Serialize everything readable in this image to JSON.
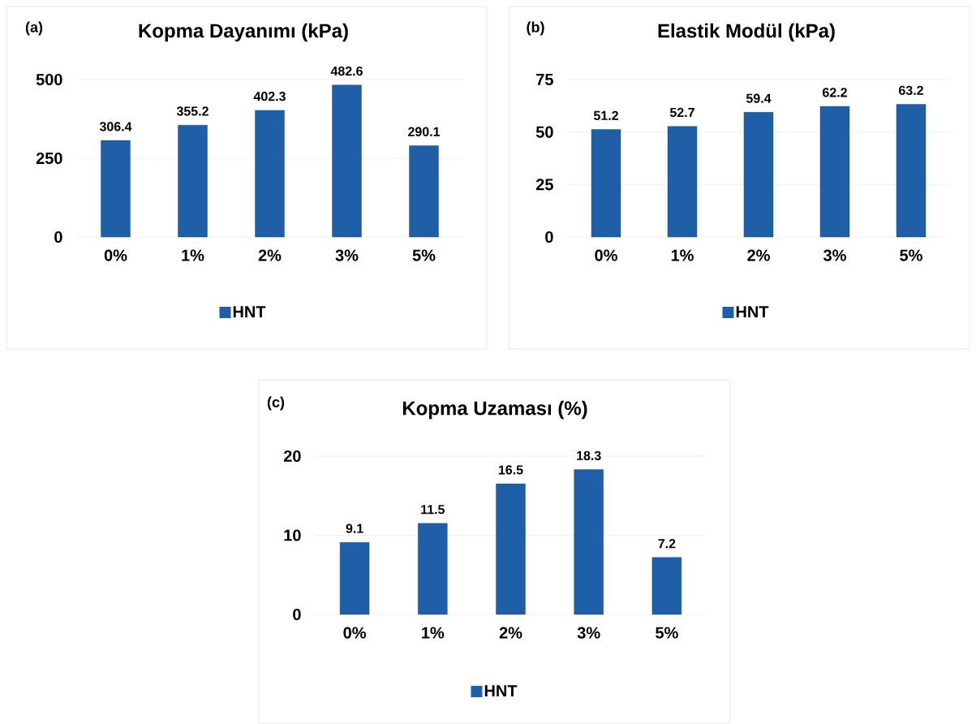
{
  "chart_data": [
    {
      "type": "bar",
      "title": "Kopma Dayanımı (kPa)",
      "annotations": [
        "(a)"
      ],
      "categories": [
        "0%",
        "1%",
        "2%",
        "3%",
        "5%"
      ],
      "series": [
        {
          "name": "HNT",
          "color": "#1f5fa8",
          "values": [
            306.4,
            355.2,
            402.3,
            482.6,
            290.1
          ]
        }
      ],
      "ylim": [
        0,
        500
      ],
      "yticks": [
        0,
        250,
        500
      ],
      "grid": "y",
      "legend": "bottom",
      "data_labels": true
    },
    {
      "type": "bar",
      "title": "Elastik Modül (kPa)",
      "annotations": [
        "(b)"
      ],
      "categories": [
        "0%",
        "1%",
        "2%",
        "3%",
        "5%"
      ],
      "series": [
        {
          "name": "HNT",
          "color": "#1f5fa8",
          "values": [
            51.2,
            52.7,
            59.4,
            62.2,
            63.2
          ]
        }
      ],
      "ylim": [
        0,
        75
      ],
      "yticks": [
        0,
        25,
        50,
        75
      ],
      "grid": "y",
      "legend": "bottom",
      "data_labels": true
    },
    {
      "type": "bar",
      "title": "Kopma Uzaması (%)",
      "annotations": [
        "(c)"
      ],
      "categories": [
        "0%",
        "1%",
        "2%",
        "3%",
        "5%"
      ],
      "series": [
        {
          "name": "HNT",
          "color": "#1f5fa8",
          "values": [
            9.1,
            11.5,
            16.5,
            18.3,
            7.2
          ]
        }
      ],
      "ylim": [
        0,
        20
      ],
      "yticks": [
        0,
        10,
        20
      ],
      "grid": "y",
      "legend": "bottom",
      "data_labels": true
    }
  ]
}
